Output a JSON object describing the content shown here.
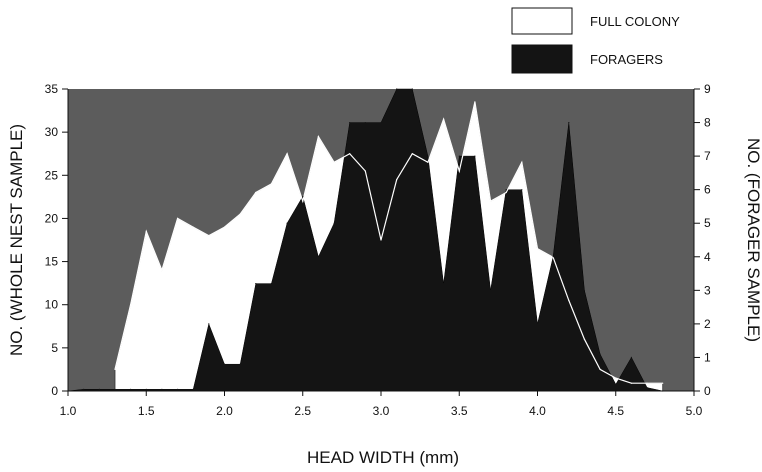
{
  "chart_data": {
    "type": "area",
    "xlabel": "HEAD WIDTH (mm)",
    "ylabel_left": "NO. (WHOLE NEST SAMPLE)",
    "ylabel_right": "NO. (FORAGER SAMPLE)",
    "xlim": [
      1.0,
      5.0
    ],
    "ylim_left": [
      0,
      35
    ],
    "ylim_right": [
      0,
      9
    ],
    "xticks": [
      "1.0",
      "1.5",
      "2.0",
      "2.5",
      "3.0",
      "3.5",
      "4.0",
      "4.5",
      "5.0"
    ],
    "yticks_left": [
      "0",
      "5",
      "10",
      "15",
      "20",
      "25",
      "30",
      "35"
    ],
    "yticks_right": [
      "0",
      "1",
      "2",
      "3",
      "4",
      "5",
      "6",
      "7",
      "8",
      "9"
    ],
    "legend": {
      "position": "top-right",
      "entries": [
        "FULL COLONY",
        "FORAGERS"
      ]
    },
    "colors": {
      "plot_background": "#5c5c5c",
      "full_colony_fill": "#ffffff",
      "foragers_fill": "#141414"
    },
    "series": [
      {
        "name": "FULL COLONY",
        "axis": "left",
        "x": [
          1.3,
          1.4,
          1.5,
          1.6,
          1.7,
          1.8,
          1.9,
          2.0,
          2.1,
          2.2,
          2.3,
          2.4,
          2.5,
          2.6,
          2.7,
          2.8,
          2.9,
          3.0,
          3.1,
          3.2,
          3.3,
          3.4,
          3.5,
          3.6,
          3.7,
          3.8,
          3.9,
          4.0,
          4.1,
          4.2,
          4.3,
          4.4,
          4.5,
          4.6,
          4.7,
          4.8
        ],
        "values": [
          2.5,
          10,
          18.5,
          14,
          20,
          19,
          18,
          19,
          20.5,
          23,
          24,
          27.5,
          22,
          29.5,
          26.5,
          27.5,
          25.5,
          17.5,
          24.5,
          27.5,
          26.5,
          31.5,
          25.5,
          33.5,
          22,
          23,
          26.5,
          16.5,
          15.5,
          10.5,
          6,
          2.5,
          1.5,
          0.9,
          0.9,
          0.9
        ]
      },
      {
        "name": "FORAGERS",
        "axis": "right",
        "x": [
          1.0,
          1.1,
          1.2,
          1.3,
          1.4,
          1.5,
          1.6,
          1.7,
          1.8,
          1.9,
          2.0,
          2.1,
          2.2,
          2.3,
          2.4,
          2.5,
          2.6,
          2.7,
          2.8,
          2.9,
          3.0,
          3.1,
          3.2,
          3.3,
          3.4,
          3.5,
          3.6,
          3.7,
          3.8,
          3.9,
          4.0,
          4.1,
          4.2,
          4.3,
          4.4,
          4.5,
          4.6,
          4.7,
          4.8
        ],
        "values": [
          0,
          0.05,
          0.05,
          0.05,
          0.05,
          0.05,
          0.05,
          0.05,
          0.05,
          2.0,
          0.8,
          0.8,
          3.2,
          3.2,
          5.0,
          5.8,
          4.0,
          5.0,
          8.0,
          8.0,
          8.0,
          9.0,
          9.0,
          7.0,
          3.2,
          7.0,
          7.0,
          3.0,
          6.0,
          6.0,
          2.0,
          4.0,
          8.0,
          3.0,
          1.1,
          0.2,
          1.0,
          0.1,
          0
        ]
      }
    ]
  }
}
